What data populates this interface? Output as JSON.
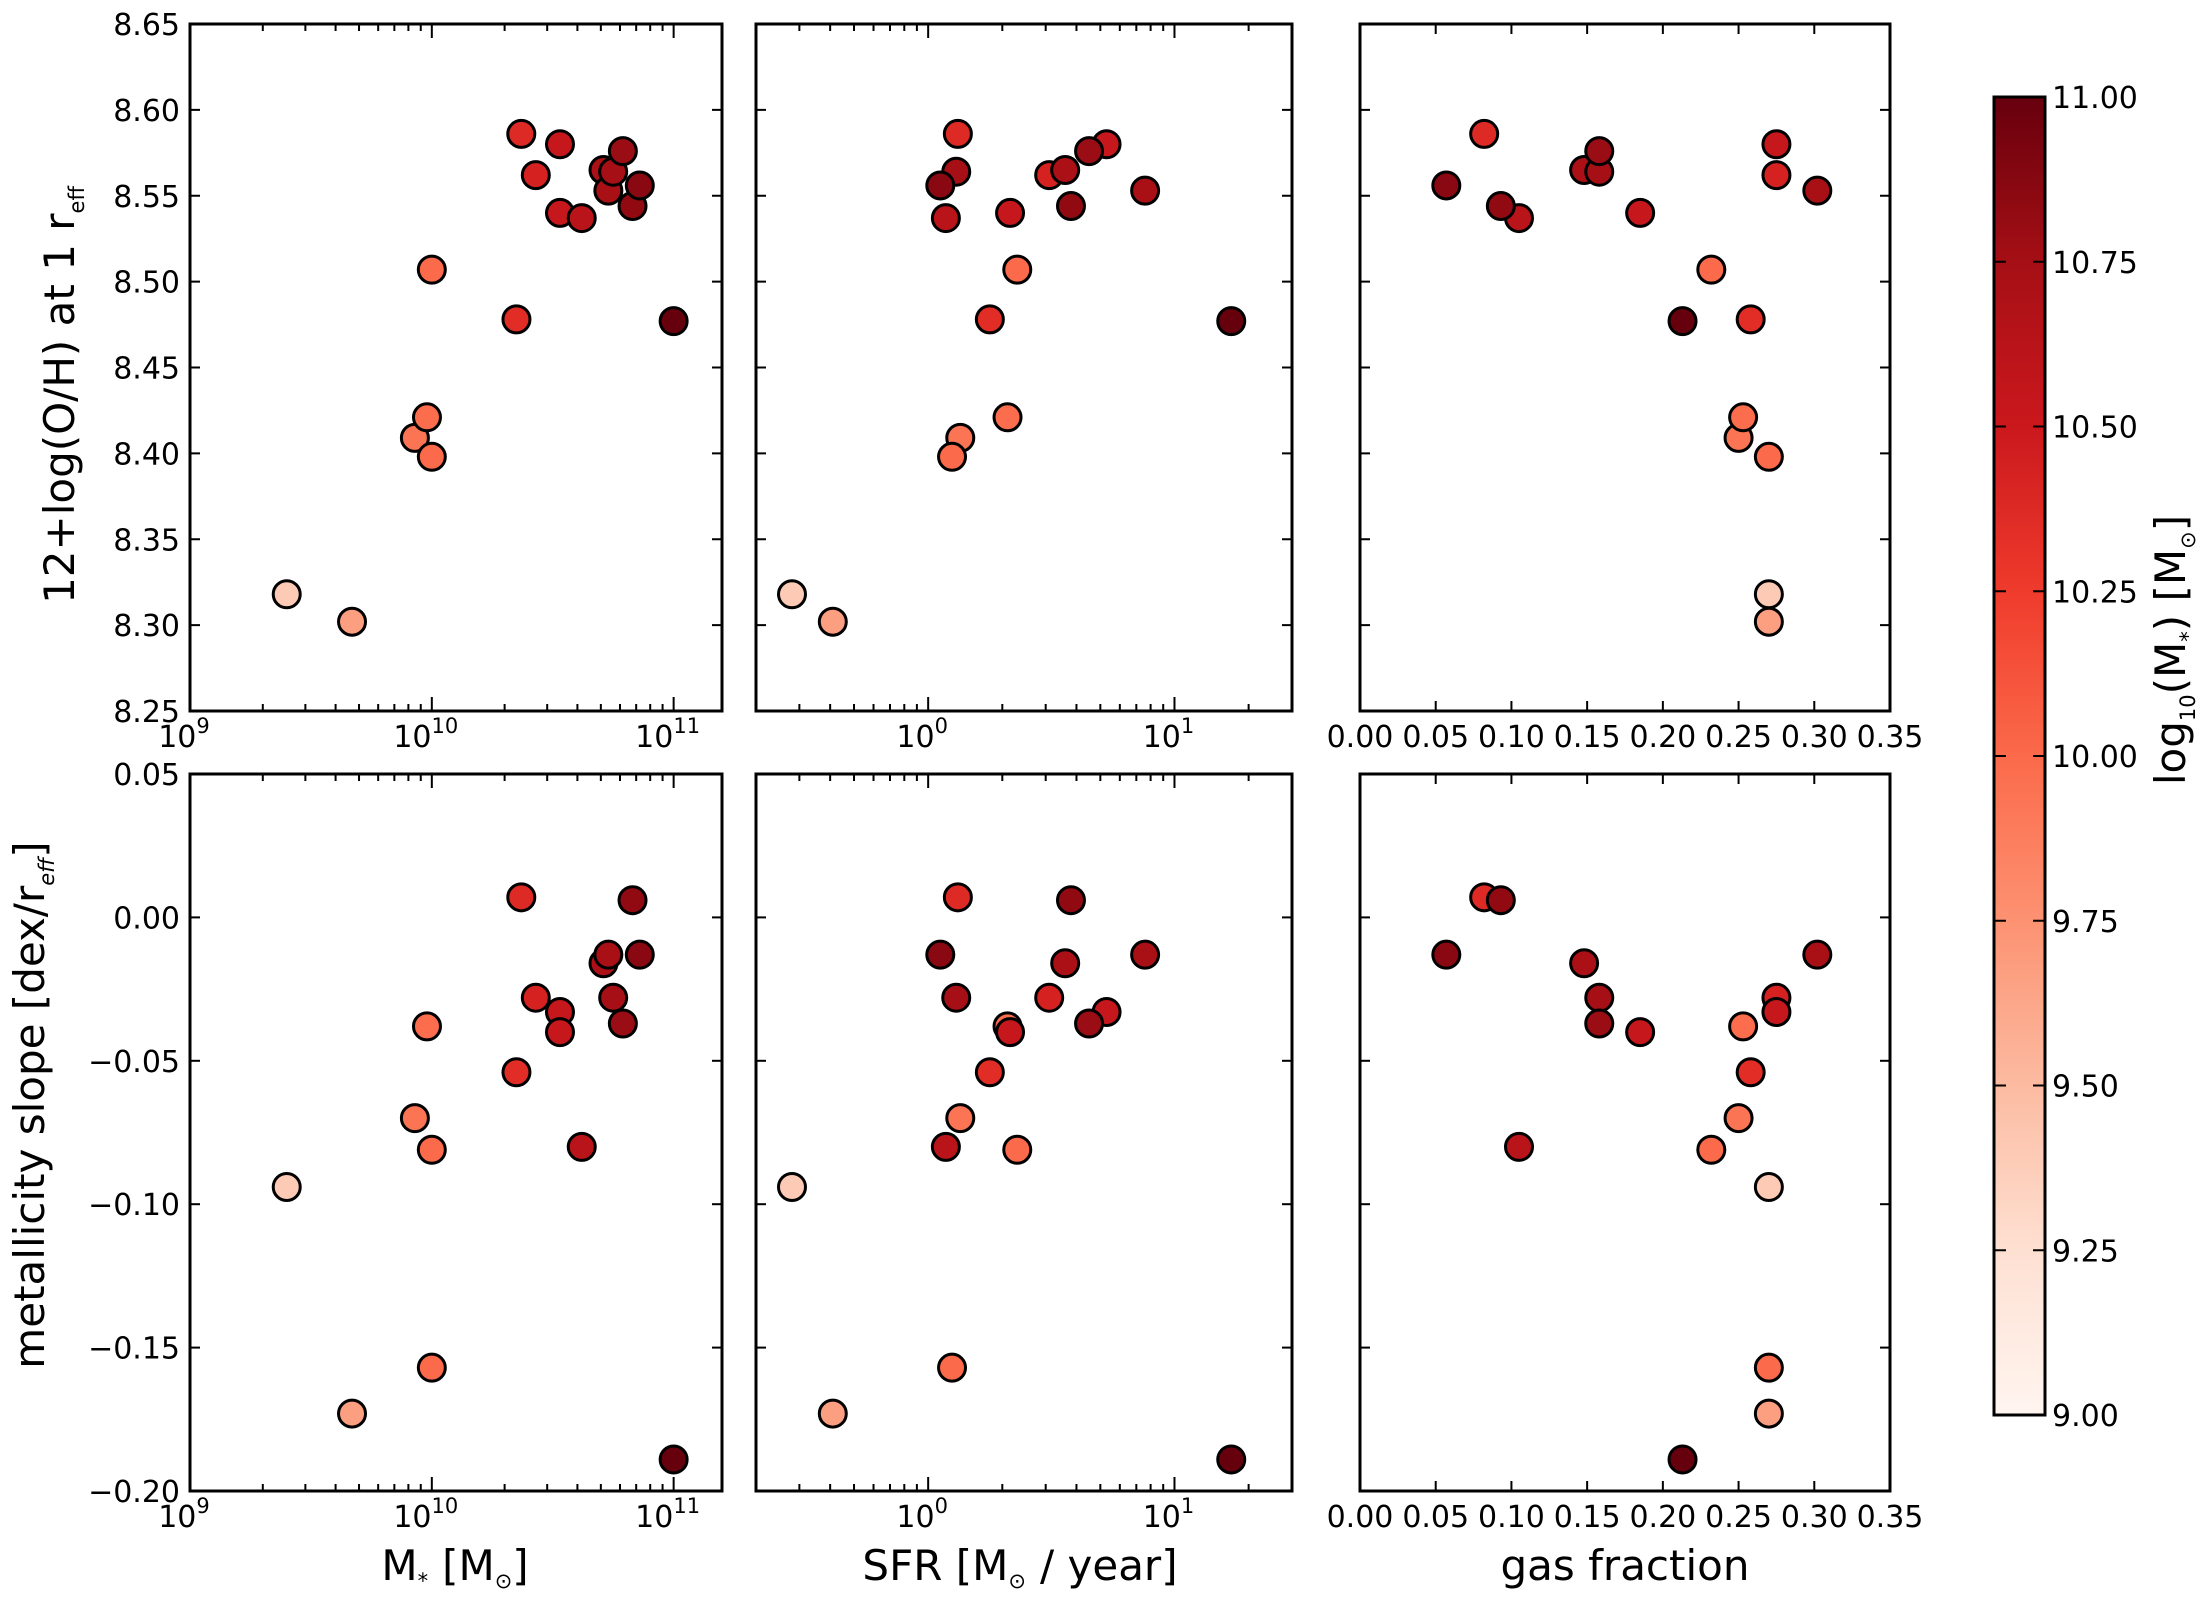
{
  "colorbar": {
    "label_main": "log",
    "label_sub": "10",
    "label_tail": "(M",
    "label_star": "*",
    "label_end": ") [M",
    "label_sun": "⊙",
    "label_close": "]",
    "min": 9.0,
    "max": 11.0,
    "ticks": [
      "9.00",
      "9.25",
      "9.50",
      "9.75",
      "10.00",
      "10.25",
      "10.50",
      "10.75",
      "11.00"
    ],
    "colormap": [
      "#fff5f0",
      "#fee0d2",
      "#fcbba1",
      "#fc9272",
      "#fb6a4a",
      "#ef3b2c",
      "#cb181d",
      "#a50f15",
      "#67000d"
    ]
  },
  "labels": {
    "row1_ylabel_main": "12+log(O/H) at 1 r",
    "row1_ylabel_sub": "eff",
    "row2_ylabel_main": "metallicity slope [dex/r",
    "row2_ylabel_sub": "eff",
    "row2_ylabel_close": "]",
    "xlabel_mass_main": "M",
    "xlabel_mass_star": "*",
    "xlabel_mass_open": "[M",
    "xlabel_mass_sun": "⊙",
    "xlabel_mass_close": "]",
    "xlabel_sfr_main": "SFR [M",
    "xlabel_sfr_sun": "⊙",
    "xlabel_sfr_tail": "/ year]",
    "xlabel_gas": "gas fraction"
  },
  "axes": {
    "mass_ticks": [
      {
        "base": "10",
        "exp": "9"
      },
      {
        "base": "10",
        "exp": "10"
      },
      {
        "base": "10",
        "exp": "11"
      }
    ],
    "sfr_ticks": [
      {
        "text": "10",
        "exp": "0"
      },
      {
        "text": "10",
        "exp": "1"
      }
    ],
    "gas_ticks": [
      "0.00",
      "0.05",
      "0.10",
      "0.15",
      "0.20",
      "0.25",
      "0.30",
      "0.35"
    ],
    "row1_yticks": [
      "8.25",
      "8.30",
      "8.35",
      "8.40",
      "8.45",
      "8.50",
      "8.55",
      "8.60",
      "8.65"
    ],
    "row2_yticks": [
      "−0.20",
      "−0.15",
      "−0.10",
      "−0.05",
      "0.00",
      "0.05"
    ]
  },
  "chart_data": {
    "type": "scatter",
    "panels": [
      {
        "name": "mass-vs-metallicity",
        "x": "log10_mstar",
        "y": "metallicity",
        "xscale": "log",
        "xlim": [
          9.0,
          11.2
        ],
        "ylim": [
          8.25,
          8.65
        ]
      },
      {
        "name": "sfr-vs-metallicity",
        "x": "sfr",
        "y": "metallicity",
        "xscale": "log",
        "xlim": [
          0.2,
          30
        ],
        "ylim": [
          8.25,
          8.65
        ]
      },
      {
        "name": "gas-vs-metallicity",
        "x": "gas",
        "y": "metallicity",
        "xscale": "linear",
        "xlim": [
          0.0,
          0.35
        ],
        "ylim": [
          8.25,
          8.65
        ]
      },
      {
        "name": "mass-vs-slope",
        "x": "log10_mstar",
        "y": "slope",
        "xscale": "log",
        "xlim": [
          9.0,
          11.2
        ],
        "ylim": [
          -0.2,
          0.05
        ]
      },
      {
        "name": "sfr-vs-slope",
        "x": "sfr",
        "y": "slope",
        "xscale": "log",
        "xlim": [
          0.2,
          30
        ],
        "ylim": [
          -0.2,
          0.05
        ]
      },
      {
        "name": "gas-vs-slope",
        "x": "gas",
        "y": "slope",
        "xscale": "linear",
        "xlim": [
          0.0,
          0.35
        ],
        "ylim": [
          -0.2,
          0.05
        ]
      }
    ],
    "color_by": "log10_mstar",
    "galaxies": [
      {
        "log10_mstar": 9.4,
        "sfr": 0.28,
        "gas": 0.27,
        "metallicity": 8.318,
        "slope": -0.094
      },
      {
        "log10_mstar": 9.67,
        "sfr": 0.41,
        "gas": 0.27,
        "metallicity": 8.302,
        "slope": -0.173
      },
      {
        "log10_mstar": 9.93,
        "sfr": 1.35,
        "gas": 0.25,
        "metallicity": 8.409,
        "slope": -0.07
      },
      {
        "log10_mstar": 9.98,
        "sfr": 2.1,
        "gas": 0.253,
        "metallicity": 8.421,
        "slope": -0.038
      },
      {
        "log10_mstar": 10.0,
        "sfr": 1.25,
        "gas": 0.27,
        "metallicity": 8.398,
        "slope": -0.157
      },
      {
        "log10_mstar": 10.0,
        "sfr": 2.3,
        "gas": 0.232,
        "metallicity": 8.507,
        "slope": -0.081
      },
      {
        "log10_mstar": 10.35,
        "sfr": 1.78,
        "gas": 0.258,
        "metallicity": 8.478,
        "slope": -0.054
      },
      {
        "log10_mstar": 10.37,
        "sfr": 1.32,
        "gas": 0.082,
        "metallicity": 8.586,
        "slope": 0.007
      },
      {
        "log10_mstar": 10.43,
        "sfr": 3.1,
        "gas": 0.275,
        "metallicity": 8.562,
        "slope": -0.028
      },
      {
        "log10_mstar": 10.53,
        "sfr": 5.3,
        "gas": 0.275,
        "metallicity": 8.58,
        "slope": -0.033
      },
      {
        "log10_mstar": 10.53,
        "sfr": 2.15,
        "gas": 0.185,
        "metallicity": 8.54,
        "slope": -0.04
      },
      {
        "log10_mstar": 10.62,
        "sfr": 1.18,
        "gas": 0.105,
        "metallicity": 8.537,
        "slope": -0.08
      },
      {
        "log10_mstar": 10.71,
        "sfr": 3.6,
        "gas": 0.148,
        "metallicity": 8.565,
        "slope": -0.016
      },
      {
        "log10_mstar": 10.73,
        "sfr": 7.6,
        "gas": 0.302,
        "metallicity": 8.553,
        "slope": -0.013
      },
      {
        "log10_mstar": 10.75,
        "sfr": 1.3,
        "gas": 0.158,
        "metallicity": 8.564,
        "slope": -0.028
      },
      {
        "log10_mstar": 10.79,
        "sfr": 4.5,
        "gas": 0.158,
        "metallicity": 8.576,
        "slope": -0.037
      },
      {
        "log10_mstar": 10.83,
        "sfr": 3.8,
        "gas": 0.093,
        "metallicity": 8.544,
        "slope": 0.006
      },
      {
        "log10_mstar": 10.86,
        "sfr": 1.12,
        "gas": 0.057,
        "metallicity": 8.556,
        "slope": -0.013
      },
      {
        "log10_mstar": 11.0,
        "sfr": 17.0,
        "gas": 0.213,
        "metallicity": 8.477,
        "slope": -0.189
      }
    ]
  }
}
